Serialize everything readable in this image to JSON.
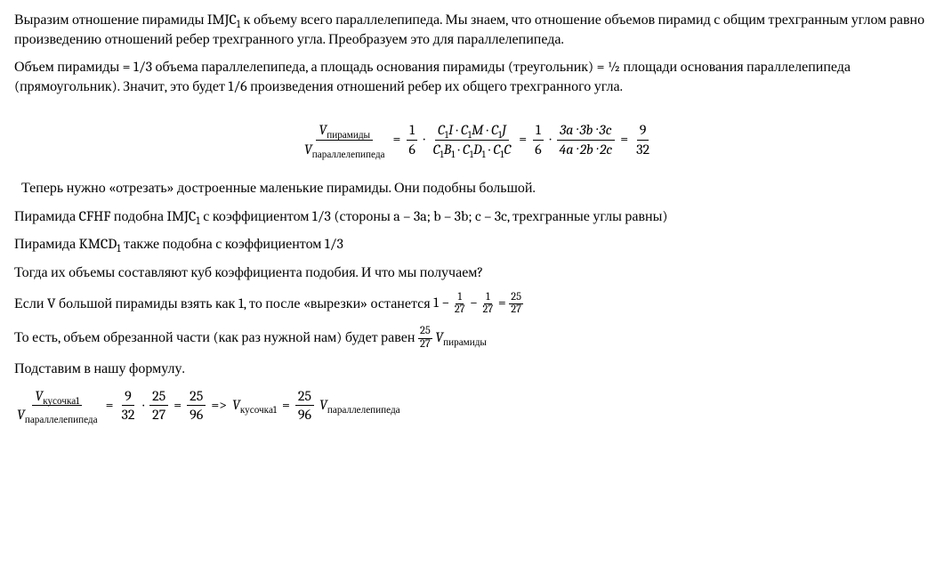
{
  "p1": "Выразим отношение пирамиды IMJC",
  "p1_sub1": "1",
  "p1_b": " к объему всего параллелепипеда. Мы знаем, что отношение объемов пирамид с общим трехгранным углом равно произведению отношений ребер трехгранного угла. Преобразуем это для параллелепипеда.",
  "p2": "Объем пирамиды = 1/3 объема параллелепипеда, а площадь основания пирамиды (треугольник) = ½ площади основания параллелепипеда (прямоугольник). Значит, это будет 1/6 произведения отношений ребер их общего трехгранного угла.",
  "formula1": {
    "lhs_num": "V",
    "lhs_num_sub": "пирамиды",
    "lhs_den": "V",
    "lhs_den_sub": "параллелепипеда",
    "f1_num": "1",
    "f1_den": "6",
    "f2_num_a": "C",
    "f2_num_a_s": "1",
    "f2_num_a2": "I",
    "f2_num_b": "C",
    "f2_num_b_s": "1",
    "f2_num_b2": "M",
    "f2_num_c": "C",
    "f2_num_c_s": "1",
    "f2_num_c2": "J",
    "f2_den_a": "C",
    "f2_den_a_s": "1",
    "f2_den_a2": "B",
    "f2_den_a2s": "1",
    "f2_den_b": "C",
    "f2_den_b_s": "1",
    "f2_den_b2": "D",
    "f2_den_b2s": "1",
    "f2_den_c": "C",
    "f2_den_c_s": "1",
    "f2_den_c2": "C",
    "f3_num": "3a · 3b · 3c",
    "f3_den": "4a · 2b · 2c",
    "f4_num": "9",
    "f4_den": "32"
  },
  "p3": "Теперь нужно «отрезать» достроенные маленькие пирамиды. Они подобны большой.",
  "p4a": "Пирамида CFHF подобна IMJC",
  "p4a_sub": "1",
  "p4b": " с коэффициентом 1/3 (стороны a – 3a; b – 3b; c – 3c, трехгранные углы равны)",
  "p5a": "Пирамида KMCD",
  "p5a_sub": "1",
  "p5b": " также подобна с коэффициентом 1/3",
  "p6": "Тогда их объемы составляют куб коэффициента подобия. И что мы получаем?",
  "p7a": "Если V большой пирамиды взять как 1, то после «вырезки» останется ",
  "inline1": {
    "one": "1",
    "a_num": "1",
    "a_den": "27",
    "b_num": "1",
    "b_den": "27",
    "r_num": "25",
    "r_den": "27"
  },
  "p8a": "То есть, объем обрезанной части (как раз нужной нам) будет равен ",
  "inline2": {
    "num": "25",
    "den": "27",
    "V": "V",
    "Vsub": "пирамиды"
  },
  "p9": "Подставим в нашу формулу.",
  "formula2": {
    "lhs_num": "V",
    "lhs_num_sub": "кусочка1",
    "lhs_den": "V",
    "lhs_den_sub": "параллелепипеда",
    "a_num": "9",
    "a_den": "32",
    "b_num": "25",
    "b_den": "27",
    "c_num": "25",
    "c_den": "96",
    "arrow": "=>",
    "rhs_V": "V",
    "rhs_V_sub": "кусочка1",
    "rhs_r_num": "25",
    "rhs_r_den": "96",
    "rhs_V2": "V",
    "rhs_V2_sub": "параллелепипеда"
  }
}
